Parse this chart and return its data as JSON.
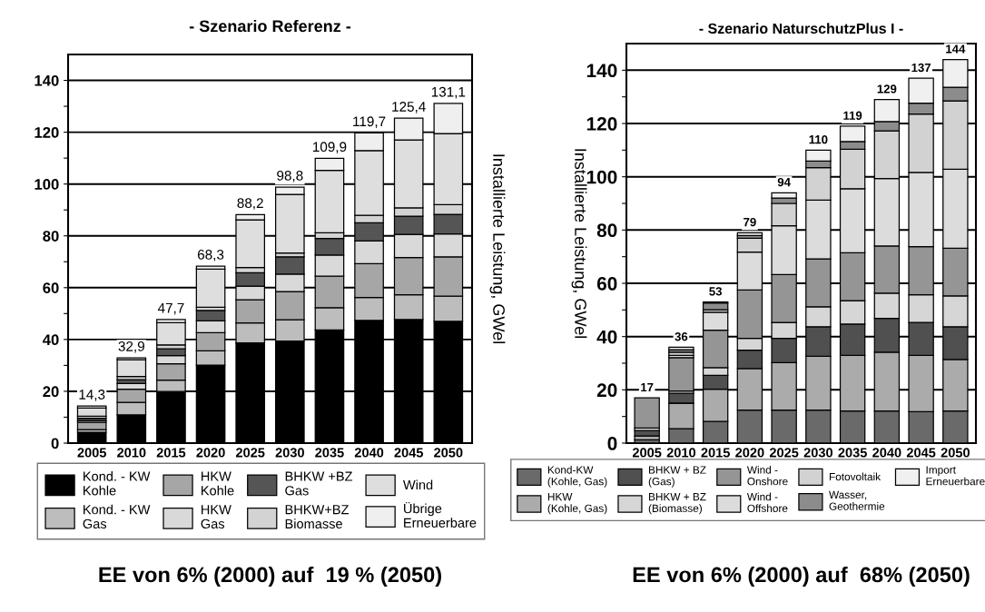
{
  "chart_data": [
    {
      "type": "bar",
      "stacked": true,
      "title": "- Szenario Referenz -",
      "ylabel": "Installierte Leistung, GWel",
      "categories": [
        "2005",
        "2010",
        "2015",
        "2020",
        "2025",
        "2030",
        "2035",
        "2040",
        "2045",
        "2050"
      ],
      "series": [
        {
          "name": "Kond. - KW\nKohle",
          "color": "#000000",
          "values": [
            4.2,
            10.9,
            19.9,
            30.1,
            38.7,
            39.4,
            43.7,
            47.4,
            47.7,
            47.0
          ]
        },
        {
          "name": "Kond. - KW\nGas",
          "color": "#bdbdbd",
          "values": [
            1.0,
            4.8,
            4.4,
            5.5,
            7.7,
            8.2,
            8.6,
            8.8,
            9.6,
            9.7
          ]
        },
        {
          "name": "HKW\nKohle",
          "color": "#a6a6a6",
          "values": [
            2.8,
            5.1,
            6.3,
            7.0,
            8.9,
            10.9,
            12.1,
            13.1,
            14.3,
            15.2
          ]
        },
        {
          "name": "HKW\nGas",
          "color": "#d9d9d9",
          "values": [
            0.6,
            2.2,
            3.2,
            4.6,
            5.3,
            6.7,
            8.2,
            8.7,
            9.0,
            8.8
          ]
        },
        {
          "name": "BHKW +BZ\nGas",
          "color": "#555555",
          "values": [
            1.0,
            1.5,
            2.6,
            4.0,
            5.2,
            6.7,
            6.4,
            7.0,
            7.0,
            7.6
          ]
        },
        {
          "name": "BHKW+BZ\nBiomasse",
          "color": "#d3d3d3",
          "values": [
            0.8,
            1.2,
            1.5,
            1.2,
            2.0,
            1.5,
            2.2,
            2.9,
            3.2,
            3.7
          ]
        },
        {
          "name": "Wind",
          "color": "#dedede",
          "values": [
            3.1,
            6.5,
            8.6,
            14.8,
            18.4,
            22.6,
            24.1,
            25.0,
            26.2,
            27.5
          ]
        },
        {
          "name": "Übrige\nErneuerbare",
          "color": "#efefef",
          "values": [
            0.8,
            0.7,
            1.2,
            1.1,
            2.0,
            2.8,
            4.6,
            6.8,
            8.4,
            11.6
          ]
        }
      ],
      "totals": [
        "14,3",
        "32,9",
        "47,7",
        "68,3",
        "88,2",
        "98,8",
        "109,9",
        "119,7",
        "125,4",
        "131,1"
      ],
      "ylim": [
        0,
        150
      ],
      "yticks": [
        0,
        {
          "value": 10,
          "label": null
        },
        20,
        {
          "value": 30,
          "label": null
        },
        40,
        {
          "value": 50,
          "label": null
        },
        60,
        {
          "value": 70,
          "label": null
        },
        80,
        {
          "value": 90,
          "label": null
        },
        100,
        {
          "value": 110,
          "label": null
        },
        120,
        {
          "value": 130,
          "label": null
        },
        140
      ],
      "grid": "y",
      "legend": "bottom",
      "annotations": [
        "EE von 6% (2000) auf  19 % (2050)"
      ]
    },
    {
      "type": "bar",
      "stacked": true,
      "title": "- Szenario NaturschutzPlus I -",
      "ylabel": "Installierte Leistung, GWel",
      "categories": [
        "2005",
        "2010",
        "2015",
        "2020",
        "2025",
        "2030",
        "2035",
        "2040",
        "2045",
        "2050"
      ],
      "series": [
        {
          "name": "Kond-KW\n(Kohle, Gas)",
          "color": "#6a6a6a",
          "values": [
            1.2,
            5.4,
            8.1,
            12.4,
            12.4,
            12.4,
            12.1,
            12.1,
            11.8,
            12.1
          ]
        },
        {
          "name": "HKW\n(Kohle, Gas)",
          "color": "#ababab",
          "values": [
            1.5,
            9.6,
            12.1,
            15.6,
            17.8,
            20.2,
            20.8,
            22.0,
            21.1,
            19.3
          ]
        },
        {
          "name": "BHKW + BZ\n(Gas)",
          "color": "#505050",
          "values": [
            2.0,
            3.7,
            5.2,
            6.9,
            9.1,
            11.1,
            11.8,
            12.7,
            12.4,
            12.3
          ]
        },
        {
          "name": "BHKW + BZ\n(Biomasse)",
          "color": "#d6d6d6",
          "values": [
            1.0,
            0.9,
            2.9,
            4.4,
            6.0,
            7.5,
            8.8,
            9.5,
            10.4,
            11.6
          ]
        },
        {
          "name": "Wind -\nOnshore",
          "color": "#959595",
          "values": [
            11.3,
            12.5,
            14.1,
            18.2,
            18.0,
            18.0,
            18.0,
            17.7,
            18.1,
            17.9
          ]
        },
        {
          "name": "Wind -\nOffshore",
          "color": "#dcdcdc",
          "values": [
            0,
            0.8,
            6.7,
            14.2,
            18.3,
            22.0,
            24.0,
            25.3,
            27.8,
            29.6
          ]
        },
        {
          "name": "Fotovoltaik",
          "color": "#d2d2d2",
          "values": [
            0,
            1.2,
            1.0,
            5.2,
            8.4,
            12.2,
            14.8,
            17.9,
            21.9,
            25.7
          ]
        },
        {
          "name": "Wasser,\nGeothermie",
          "color": "#8c8c8c",
          "values": [
            0,
            1.0,
            2.5,
            1.0,
            2.0,
            2.5,
            2.9,
            3.5,
            4.1,
            5.1
          ]
        },
        {
          "name": "Import\nErneuerbare",
          "color": "#f0f0f0",
          "values": [
            0,
            0.9,
            0.4,
            1.1,
            2.0,
            4.1,
            5.8,
            8.3,
            9.4,
            10.4
          ]
        }
      ],
      "totals": [
        "17",
        "36",
        "53",
        "79",
        "94",
        "110",
        "119",
        "129",
        "137",
        "144"
      ],
      "ylim": [
        0,
        150
      ],
      "yticks": [
        0,
        {
          "value": 10,
          "label": null
        },
        20,
        {
          "value": 30,
          "label": null
        },
        40,
        {
          "value": 50,
          "label": null
        },
        60,
        {
          "value": 70,
          "label": null
        },
        80,
        {
          "value": 90,
          "label": null
        },
        100,
        {
          "value": 110,
          "label": null
        },
        120,
        {
          "value": 130,
          "label": null
        },
        140
      ],
      "grid": "y",
      "legend": "bottom",
      "annotations": [
        "EE von 6% (2000) auf  68% (2050)"
      ]
    }
  ]
}
